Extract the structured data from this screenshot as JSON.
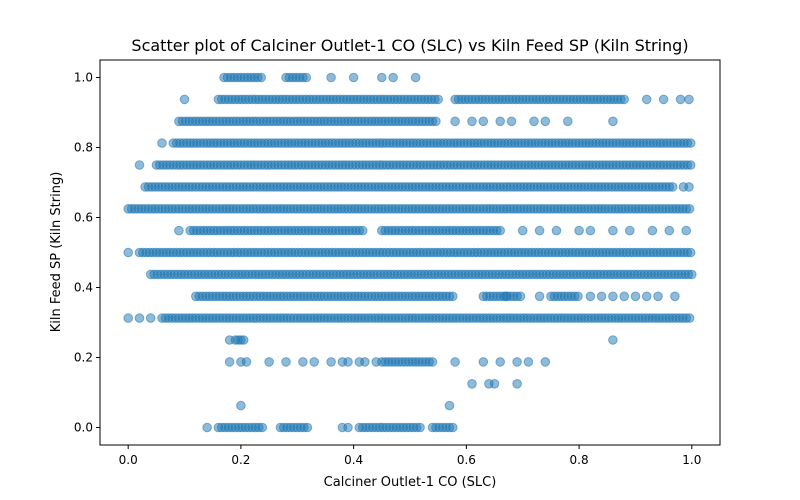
{
  "chart_data": {
    "type": "scatter",
    "title": "Scatter plot of Calciner Outlet-1 CO (SLC) vs Kiln Feed  SP  (Kiln String)",
    "xlabel": "Calciner Outlet-1 CO (SLC)",
    "ylabel": "Kiln Feed  SP  (Kiln String)",
    "xlim": [
      -0.05,
      1.05
    ],
    "ylim": [
      -0.05,
      1.05
    ],
    "xticks": [
      "0.0",
      "0.2",
      "0.4",
      "0.6",
      "0.8",
      "1.0"
    ],
    "yticks": [
      "0.0",
      "0.2",
      "0.4",
      "0.6",
      "0.8",
      "1.0"
    ],
    "grid": false,
    "legend": "none",
    "color": "#1f77b4",
    "bands": [
      {
        "y": 1.0,
        "segments": [
          [
            0.17,
            0.24
          ],
          [
            0.28,
            0.32
          ]
        ],
        "points": [
          0.36,
          0.4,
          0.45,
          0.47,
          0.51
        ]
      },
      {
        "y": 0.9375,
        "segments": [
          [
            0.16,
            0.55
          ],
          [
            0.58,
            0.88
          ]
        ],
        "points": [
          0.1,
          0.92,
          0.95,
          0.98,
          0.995
        ]
      },
      {
        "y": 0.875,
        "segments": [
          [
            0.09,
            0.55
          ]
        ],
        "points": [
          0.58,
          0.61,
          0.63,
          0.66,
          0.68,
          0.72,
          0.74,
          0.78,
          0.86
        ]
      },
      {
        "y": 0.8125,
        "segments": [
          [
            0.08,
            1.0
          ]
        ],
        "points": [
          0.06
        ]
      },
      {
        "y": 0.75,
        "segments": [
          [
            0.05,
            1.0
          ]
        ],
        "points": [
          0.02
        ]
      },
      {
        "y": 0.6875,
        "segments": [
          [
            0.03,
            0.97
          ]
        ],
        "points": [
          0.985,
          0.995
        ]
      },
      {
        "y": 0.625,
        "segments": [
          [
            0.0,
            1.0
          ]
        ],
        "points": []
      },
      {
        "y": 0.5625,
        "segments": [
          [
            0.11,
            0.42
          ],
          [
            0.45,
            0.66
          ]
        ],
        "points": [
          0.09,
          0.7,
          0.73,
          0.76,
          0.8,
          0.82,
          0.86,
          0.89,
          0.93,
          0.96,
          0.99
        ]
      },
      {
        "y": 0.5,
        "segments": [
          [
            0.02,
            1.0
          ]
        ],
        "points": [
          0.0
        ]
      },
      {
        "y": 0.4375,
        "segments": [
          [
            0.04,
            1.0
          ]
        ],
        "points": []
      },
      {
        "y": 0.375,
        "segments": [
          [
            0.12,
            0.58
          ],
          [
            0.63,
            0.7
          ],
          [
            0.75,
            0.8
          ]
        ],
        "points": [
          0.67,
          0.73,
          0.82,
          0.84,
          0.86,
          0.88,
          0.9,
          0.92,
          0.94,
          0.97
        ]
      },
      {
        "y": 0.3125,
        "segments": [
          [
            0.06,
            1.0
          ]
        ],
        "points": [
          0.0,
          0.02,
          0.04
        ]
      },
      {
        "y": 0.25,
        "segments": [],
        "points": [
          0.18,
          0.19,
          0.195,
          0.2,
          0.205,
          0.86
        ]
      },
      {
        "y": 0.1875,
        "segments": [
          [
            0.45,
            0.54
          ]
        ],
        "points": [
          0.18,
          0.2,
          0.21,
          0.25,
          0.28,
          0.31,
          0.33,
          0.36,
          0.38,
          0.39,
          0.41,
          0.42,
          0.44,
          0.58,
          0.63,
          0.66,
          0.69,
          0.71,
          0.74
        ]
      },
      {
        "y": 0.125,
        "segments": [],
        "points": [
          0.61,
          0.64,
          0.65,
          0.69
        ]
      },
      {
        "y": 0.0625,
        "segments": [],
        "points": [
          0.2,
          0.57
        ]
      },
      {
        "y": 0.0,
        "segments": [
          [
            0.16,
            0.24
          ],
          [
            0.27,
            0.32
          ],
          [
            0.41,
            0.52
          ],
          [
            0.54,
            0.58
          ]
        ],
        "points": [
          0.14,
          0.38,
          0.39
        ]
      }
    ]
  }
}
